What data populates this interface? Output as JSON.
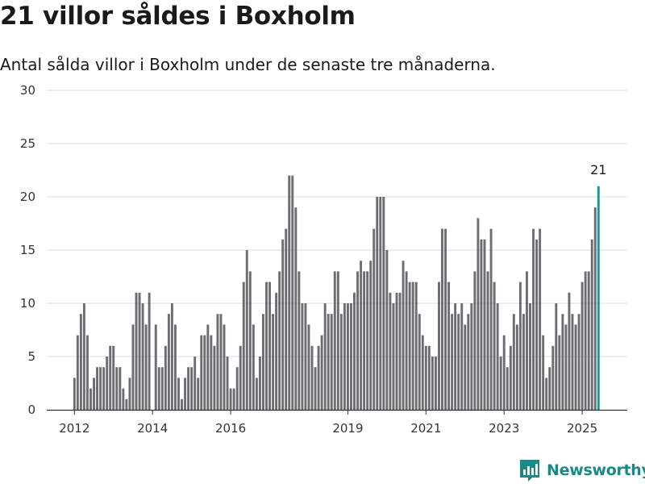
{
  "header": {
    "title": "21 villor såldes i Boxholm",
    "subtitle": "Antal sålda villor i Boxholm under de senaste tre månaderna."
  },
  "colors": {
    "bar": "#6d6c71",
    "highlight": "#1a9a95",
    "grid": "#dcdcdc",
    "axis": "#333333",
    "brand": "#1a8a87"
  },
  "brand": {
    "name": "Newsworthy",
    "icon": "newsworthy-logo-icon"
  },
  "chart_data": {
    "type": "bar",
    "title": "21 villor såldes i Boxholm",
    "subtitle": "Antal sålda villor i Boxholm under de senaste tre månaderna.",
    "xlabel": "",
    "ylabel": "",
    "ylim": [
      0,
      30
    ],
    "yticks": [
      "0",
      "5",
      "10",
      "15",
      "20",
      "25",
      "30"
    ],
    "xticks": [
      "2012",
      "2014",
      "2016",
      "2019",
      "2021",
      "2023",
      "2025"
    ],
    "x_start": "2012-01",
    "x_end": "2025-06",
    "grid": true,
    "annotation": {
      "label": "21",
      "value": 21,
      "month": "2025-06"
    },
    "series": [
      {
        "values": [
          3,
          7,
          9,
          10,
          7,
          2,
          3,
          4,
          4,
          4,
          5,
          6,
          6,
          4,
          4,
          2,
          1,
          3,
          8,
          11,
          11,
          10,
          8,
          11,
          0,
          8,
          4,
          4,
          6,
          9,
          10,
          8,
          3,
          1,
          3,
          4,
          4,
          5,
          3,
          7,
          7,
          8,
          7,
          6,
          9,
          9,
          8,
          5,
          2,
          2,
          4,
          6,
          12,
          15,
          13,
          8,
          3,
          5,
          9,
          12,
          12,
          9,
          11,
          13,
          16,
          17,
          22,
          22,
          19,
          13,
          10,
          10,
          8,
          6,
          4,
          6,
          7,
          10,
          9,
          9,
          13,
          13,
          9,
          10,
          10,
          10,
          11,
          13,
          14,
          13,
          13,
          14,
          17,
          20,
          20,
          20,
          15,
          11,
          10,
          11,
          11,
          14,
          13,
          12,
          12,
          12,
          9,
          7,
          6,
          6,
          5,
          5,
          12,
          17,
          17,
          12,
          9,
          10,
          9,
          10,
          8,
          9,
          10,
          13,
          18,
          16,
          16,
          13,
          17,
          12,
          10,
          5,
          7,
          4,
          6,
          9,
          8,
          12,
          9,
          13,
          10,
          17,
          16,
          17,
          7,
          3,
          4,
          6,
          10,
          7,
          9,
          8,
          11,
          9,
          8,
          9,
          12,
          13,
          13,
          16,
          19,
          21
        ]
      }
    ]
  }
}
